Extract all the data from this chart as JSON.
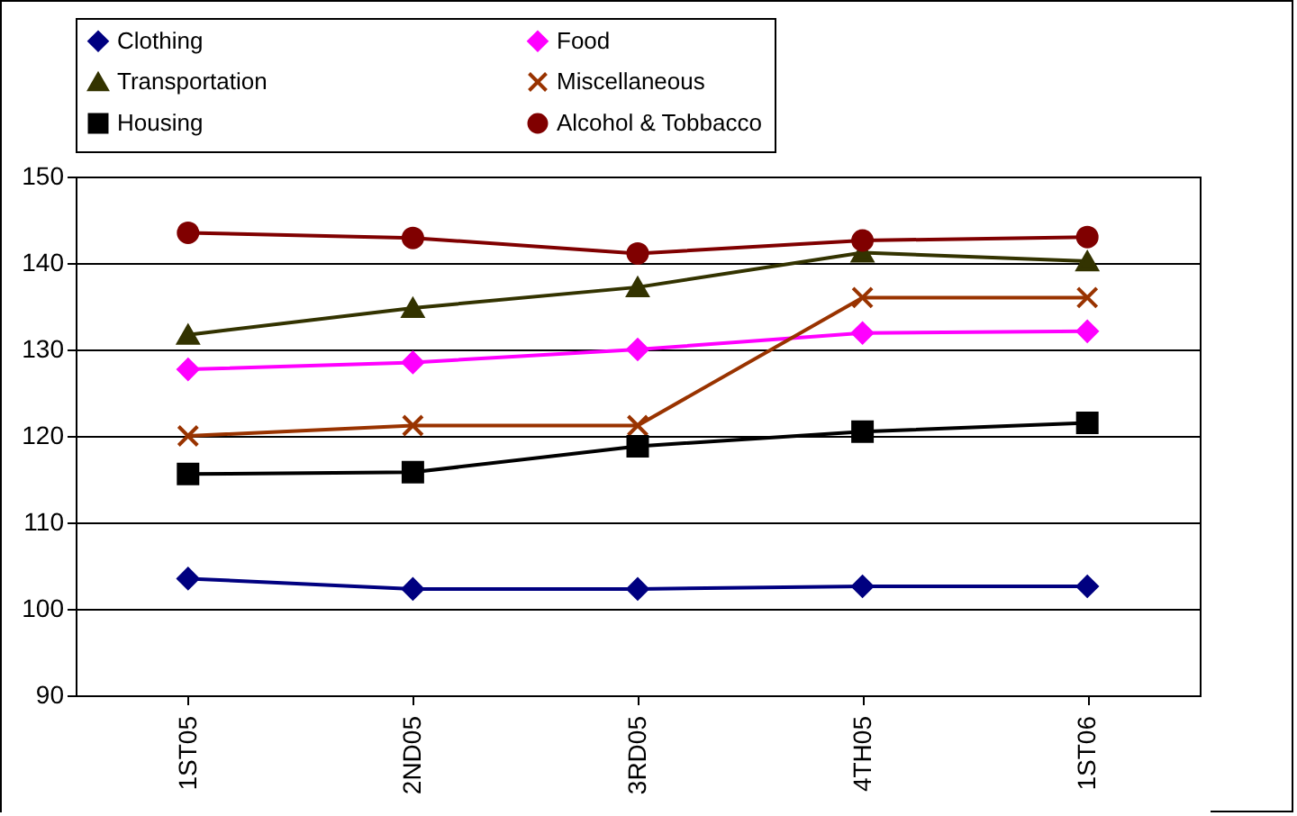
{
  "chart_data": {
    "type": "line",
    "categories": [
      "1ST05",
      "2ND05",
      "3RD05",
      "4TH05",
      "1ST06"
    ],
    "ylim": [
      90,
      150
    ],
    "yticks": [
      90,
      100,
      110,
      120,
      130,
      140,
      150
    ],
    "grid": "y",
    "legend": "top",
    "series": [
      {
        "name": "Clothing",
        "color": "#000080",
        "marker": "diamond",
        "values": [
          103.5,
          102.3,
          102.3,
          102.6,
          102.6
        ]
      },
      {
        "name": "Food",
        "color": "#ff00ff",
        "marker": "diamond",
        "values": [
          127.7,
          128.5,
          130.0,
          131.9,
          132.1
        ]
      },
      {
        "name": "Transportation",
        "color": "#333300",
        "marker": "triangle",
        "values": [
          131.7,
          134.8,
          137.2,
          141.2,
          140.2
        ]
      },
      {
        "name": "Miscellaneous",
        "color": "#993300",
        "marker": "cross",
        "values": [
          120.0,
          121.2,
          121.2,
          136.0,
          136.0
        ]
      },
      {
        "name": "Housing",
        "color": "#000000",
        "marker": "square",
        "values": [
          115.6,
          115.8,
          118.8,
          120.5,
          121.5
        ]
      },
      {
        "name": "Alcohol & Tobbacco",
        "color": "#800000",
        "marker": "circle",
        "values": [
          143.5,
          142.9,
          141.1,
          142.6,
          143.0
        ]
      }
    ]
  }
}
